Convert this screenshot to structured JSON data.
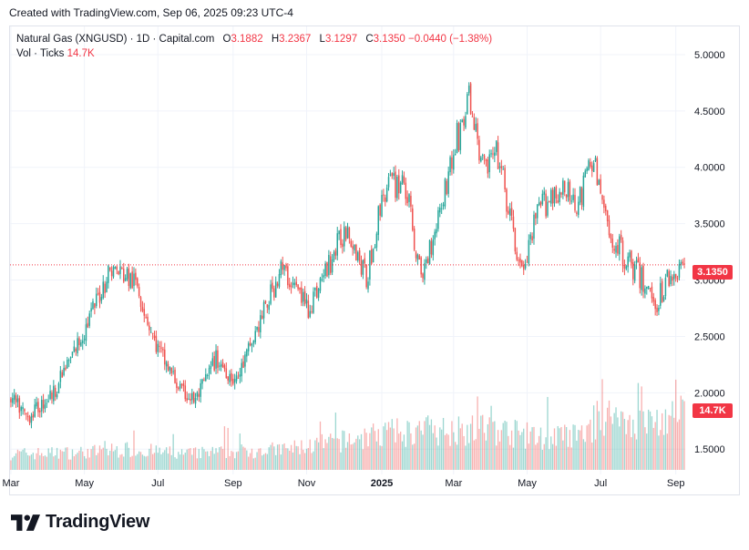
{
  "caption": "Created with TradingView.com, Sep 06, 2025 09:23 UTC-4",
  "legend": {
    "symbol": "Natural Gas (XNGUSD) · 1D · Capital.com",
    "open_label": "O",
    "open": "3.1882",
    "high_label": "H",
    "high": "3.2367",
    "low_label": "L",
    "low": "3.1297",
    "close_label": "C",
    "close": "3.1350",
    "change": "−0.0440 (−1.38%)",
    "vol_label": "Vol · Ticks",
    "vol_value": "14.7K"
  },
  "badges": {
    "last_price": "3.1350",
    "last_volume": "14.7K"
  },
  "brand": {
    "name": "TradingView",
    "logo_icon": "tradingview-logo-icon"
  },
  "colors": {
    "up": "#26a69a",
    "down": "#ef5350",
    "last_price_line": "#f23645",
    "grid": "#f0f3fa",
    "axis_text": "#131722"
  },
  "chart_data": {
    "type": "candlestick",
    "title": "Natural Gas (XNGUSD) · 1D · Capital.com",
    "ylim": [
      1.3,
      5.25
    ],
    "y_ticks": [
      {
        "value": 5.0,
        "label": "5.0000"
      },
      {
        "value": 4.5,
        "label": "4.5000"
      },
      {
        "value": 4.0,
        "label": "4.0000"
      },
      {
        "value": 3.5,
        "label": "3.5000"
      },
      {
        "value": 3.0,
        "label": "3.0000"
      },
      {
        "value": 2.5,
        "label": "2.5000"
      },
      {
        "value": 2.0,
        "label": "2.0000"
      },
      {
        "value": 1.5,
        "label": "1.5000"
      }
    ],
    "x_ticks": [
      {
        "index": 0,
        "label": "Mar",
        "bold": false
      },
      {
        "index": 43,
        "label": "May",
        "bold": false
      },
      {
        "index": 86,
        "label": "Jul",
        "bold": false
      },
      {
        "index": 130,
        "label": "Sep",
        "bold": false
      },
      {
        "index": 173,
        "label": "Nov",
        "bold": false
      },
      {
        "index": 217,
        "label": "2025",
        "bold": true
      },
      {
        "index": 259,
        "label": "Mar",
        "bold": false
      },
      {
        "index": 302,
        "label": "May",
        "bold": false
      },
      {
        "index": 345,
        "label": "Jul",
        "bold": false
      },
      {
        "index": 389,
        "label": "Sep",
        "bold": false
      }
    ],
    "last_price": 3.135,
    "bar_count": 395,
    "price_anchors": [
      [
        0,
        1.95
      ],
      [
        10,
        1.78
      ],
      [
        25,
        2.0
      ],
      [
        43,
        2.55
      ],
      [
        58,
        3.1
      ],
      [
        66,
        3.05
      ],
      [
        74,
        2.95
      ],
      [
        84,
        2.45
      ],
      [
        100,
        2.0
      ],
      [
        108,
        1.93
      ],
      [
        120,
        2.3
      ],
      [
        132,
        2.1
      ],
      [
        145,
        2.6
      ],
      [
        158,
        3.1
      ],
      [
        166,
        2.95
      ],
      [
        174,
        2.75
      ],
      [
        185,
        3.1
      ],
      [
        197,
        3.5
      ],
      [
        208,
        3.0
      ],
      [
        218,
        3.8
      ],
      [
        230,
        3.9
      ],
      [
        240,
        3.0
      ],
      [
        252,
        3.7
      ],
      [
        262,
        4.3
      ],
      [
        268,
        4.6
      ],
      [
        276,
        4.0
      ],
      [
        285,
        4.1
      ],
      [
        295,
        3.3
      ],
      [
        300,
        3.05
      ],
      [
        308,
        3.6
      ],
      [
        318,
        3.8
      ],
      [
        333,
        3.7
      ],
      [
        340,
        4.1
      ],
      [
        350,
        3.4
      ],
      [
        365,
        3.1
      ],
      [
        378,
        2.8
      ],
      [
        385,
        3.05
      ],
      [
        395,
        3.135
      ]
    ],
    "volume_scale_max": 24,
    "volume_anchors": [
      [
        0,
        3.5
      ],
      [
        40,
        3.8
      ],
      [
        70,
        4.5
      ],
      [
        100,
        3.5
      ],
      [
        130,
        4.0
      ],
      [
        160,
        4.5
      ],
      [
        190,
        6.0
      ],
      [
        220,
        8.0
      ],
      [
        250,
        8.5
      ],
      [
        280,
        9.0
      ],
      [
        310,
        7.0
      ],
      [
        335,
        7.5
      ],
      [
        345,
        12.0
      ],
      [
        370,
        10.0
      ],
      [
        395,
        12.0
      ]
    ]
  }
}
